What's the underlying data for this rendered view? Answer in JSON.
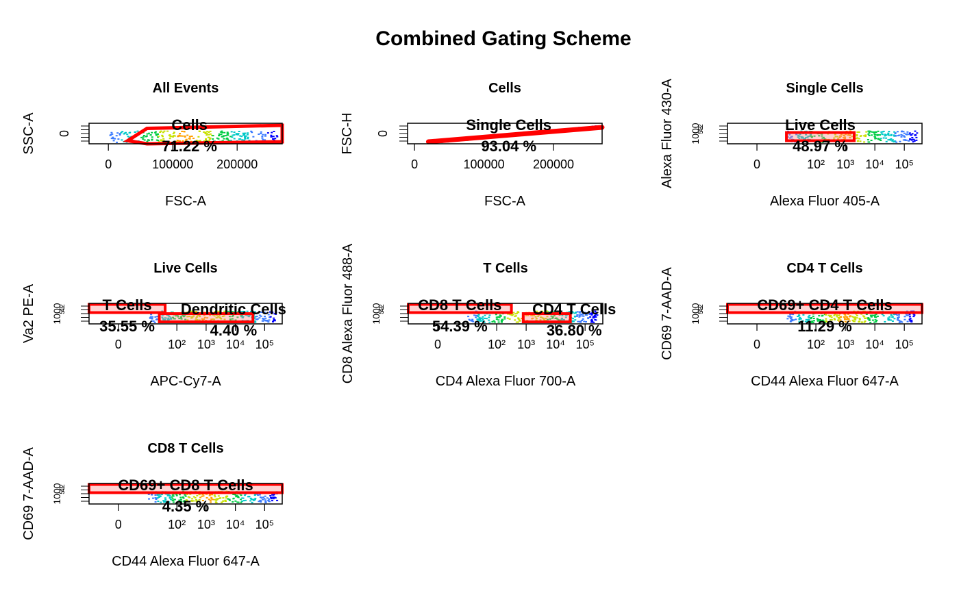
{
  "figure": {
    "title": "Combined Gating Scheme"
  },
  "colors": {
    "gate": "#ff0000",
    "gate_fill": "#ff8080",
    "density": [
      "#0000ff",
      "#3a7bff",
      "#00c8c8",
      "#00cc44",
      "#c8e000",
      "#ffa000",
      "#ff2000"
    ]
  },
  "chart_data": [
    {
      "type": "scatter",
      "panel": 1,
      "title": "All Events",
      "xlabel": "FSC-A",
      "ylabel": "SSC-A",
      "x_ticks": [
        "0",
        "100000",
        "200000"
      ],
      "x_tick_values": [
        0,
        100000,
        200000
      ],
      "xlim": [
        -30000,
        270000
      ],
      "y_ticks": [
        "0"
      ],
      "gates": [
        {
          "name": "Cells",
          "percent": "71.22 %",
          "shape": "polygon",
          "x": [
            30000,
            60000,
            270000,
            270000,
            60000,
            30000
          ],
          "y": [
            0.15,
            0.75,
            0.9,
            0.1,
            0.0,
            0.15
          ]
        }
      ],
      "events_x_range": [
        0,
        262000
      ]
    },
    {
      "type": "scatter",
      "panel": 2,
      "title": "Cells",
      "xlabel": "FSC-A",
      "ylabel": "FSC-H",
      "x_ticks": [
        "0",
        "100000",
        "200000"
      ],
      "x_tick_values": [
        0,
        100000,
        200000
      ],
      "xlim": [
        -10000,
        270000
      ],
      "y_ticks": [
        "0"
      ],
      "gates": [
        {
          "name": "Single Cells",
          "percent": "93.04 %",
          "shape": "band",
          "x": [
            20000,
            270000
          ],
          "y": [
            0.1,
            0.8
          ]
        }
      ],
      "events_x_range": [
        20000,
        262000
      ]
    },
    {
      "type": "scatter",
      "panel": 3,
      "title": "Single Cells",
      "xlabel": "Alexa Fluor 405-A",
      "ylabel": "Alexa Fluor 430-A",
      "x_ticks": [
        "0",
        "10²",
        "10³",
        "10⁴",
        "10⁵"
      ],
      "x_tick_values": [
        0,
        2,
        3,
        4,
        5
      ],
      "y_ticks": [
        "1000",
        "2",
        "3",
        "4",
        "5"
      ],
      "gates": [
        {
          "name": "Live Cells",
          "percent": "48.97 %",
          "shape": "rectangle",
          "x": [
            1.0,
            3.3
          ],
          "y": [
            0.15,
            0.55
          ]
        }
      ]
    },
    {
      "type": "scatter",
      "panel": 4,
      "title": "Live Cells",
      "xlabel": "APC-Cy7-A",
      "ylabel": "Va2 PE-A",
      "x_ticks": [
        "0",
        "10²",
        "10³",
        "10⁴",
        "10⁵"
      ],
      "x_tick_values": [
        0,
        2,
        3,
        4,
        5
      ],
      "y_ticks": [
        "1000",
        "2",
        "3",
        "4",
        "5"
      ],
      "gates": [
        {
          "name": "T Cells",
          "percent": "35.55 %",
          "shape": "rectangle",
          "x": [
            -1.0,
            1.6
          ],
          "y": [
            0.55,
            0.95
          ]
        },
        {
          "name": "Dendritic Cells",
          "percent": "4.40 %",
          "shape": "rectangle",
          "x": [
            1.4,
            4.6
          ],
          "y": [
            0.1,
            0.5
          ]
        }
      ]
    },
    {
      "type": "scatter",
      "panel": 5,
      "title": "T Cells",
      "xlabel": "CD4 Alexa Fluor 700-A",
      "ylabel": "CD8 Alexa Fluor 488-A",
      "x_ticks": [
        "0",
        "10²",
        "10³",
        "10⁴",
        "10⁵"
      ],
      "x_tick_values": [
        0,
        2,
        3,
        4,
        5
      ],
      "y_ticks": [
        "1000",
        "2",
        "3",
        "4",
        "5"
      ],
      "gates": [
        {
          "name": "CD8 T Cells",
          "percent": "54.39 %",
          "shape": "rectangle",
          "x": [
            -1.0,
            2.5
          ],
          "y": [
            0.55,
            0.95
          ]
        },
        {
          "name": "CD4 T Cells",
          "percent": "36.80 %",
          "shape": "rectangle",
          "x": [
            2.9,
            4.5
          ],
          "y": [
            0.1,
            0.5
          ]
        }
      ]
    },
    {
      "type": "scatter",
      "panel": 6,
      "title": "CD4 T Cells",
      "xlabel": "CD44 Alexa Fluor 647-A",
      "ylabel": "CD69 7-AAD-A",
      "x_ticks": [
        "0",
        "10²",
        "10³",
        "10⁴",
        "10⁵"
      ],
      "x_tick_values": [
        0,
        2,
        3,
        4,
        5
      ],
      "y_ticks": [
        "1000",
        "2",
        "3",
        "4",
        "5"
      ],
      "gates": [
        {
          "name": "CD69+ CD4 T Cells",
          "percent": "11.29 %",
          "shape": "rectangle",
          "x": [
            -1.0,
            5.6
          ],
          "y": [
            0.55,
            0.95
          ]
        }
      ]
    },
    {
      "type": "scatter",
      "panel": 7,
      "title": "CD8 T Cells",
      "xlabel": "CD44 Alexa Fluor 647-A",
      "ylabel": "CD69 7-AAD-A",
      "x_ticks": [
        "0",
        "10²",
        "10³",
        "10⁴",
        "10⁵"
      ],
      "x_tick_values": [
        0,
        2,
        3,
        4,
        5
      ],
      "y_ticks": [
        "1000",
        "2",
        "3",
        "4",
        "5"
      ],
      "gates": [
        {
          "name": "CD69+ CD8 T Cells",
          "percent": "4.35 %",
          "shape": "rectangle",
          "x": [
            -1.0,
            5.6
          ],
          "y": [
            0.55,
            0.95
          ]
        }
      ]
    }
  ]
}
